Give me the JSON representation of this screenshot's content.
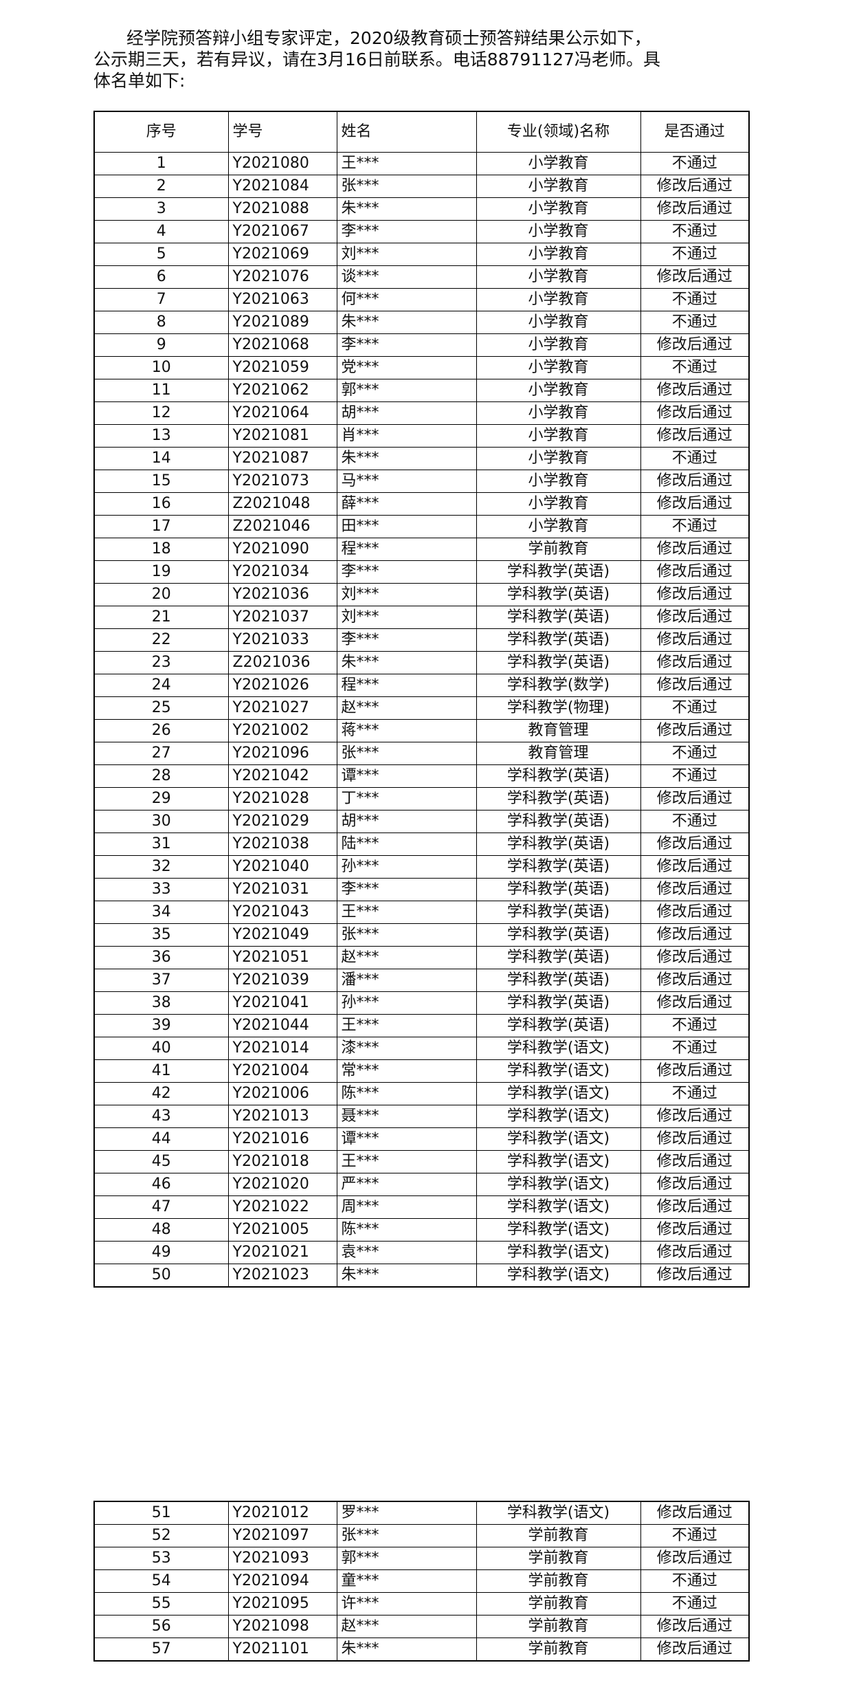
{
  "intro": {
    "lines": [
      "经学院预答辩小组专家评定，2020级教育硕士预答辩结果公示如下，",
      "公示期三天，若有异议，请在3月16日前联系。电话88791127冯老师。具",
      "体名单如下:"
    ]
  },
  "table": {
    "header": [
      "序号",
      "学号",
      "姓名",
      "专业(领域)名称",
      "是否通过"
    ],
    "rows": [
      [
        1,
        "Y2021080",
        "王***",
        "小学教育",
        "不通过"
      ],
      [
        2,
        "Y2021084",
        "张***",
        "小学教育",
        "修改后通过"
      ],
      [
        3,
        "Y2021088",
        "朱***",
        "小学教育",
        "修改后通过"
      ],
      [
        4,
        "Y2021067",
        "李***",
        "小学教育",
        "不通过"
      ],
      [
        5,
        "Y2021069",
        "刘***",
        "小学教育",
        "不通过"
      ],
      [
        6,
        "Y2021076",
        "谈***",
        "小学教育",
        "修改后通过"
      ],
      [
        7,
        "Y2021063",
        "何***",
        "小学教育",
        "不通过"
      ],
      [
        8,
        "Y2021089",
        "朱***",
        "小学教育",
        "不通过"
      ],
      [
        9,
        "Y2021068",
        "李***",
        "小学教育",
        "修改后通过"
      ],
      [
        10,
        "Y2021059",
        "党***",
        "小学教育",
        "不通过"
      ],
      [
        11,
        "Y2021062",
        "郭***",
        "小学教育",
        "修改后通过"
      ],
      [
        12,
        "Y2021064",
        "胡***",
        "小学教育",
        "修改后通过"
      ],
      [
        13,
        "Y2021081",
        "肖***",
        "小学教育",
        "修改后通过"
      ],
      [
        14,
        "Y2021087",
        "朱***",
        "小学教育",
        "不通过"
      ],
      [
        15,
        "Y2021073",
        "马***",
        "小学教育",
        "修改后通过"
      ],
      [
        16,
        "Z2021048",
        "薛***",
        "小学教育",
        "修改后通过"
      ],
      [
        17,
        "Z2021046",
        "田***",
        "小学教育",
        "不通过"
      ],
      [
        18,
        "Y2021090",
        "程***",
        "学前教育",
        "修改后通过"
      ],
      [
        19,
        "Y2021034",
        "李***",
        "学科教学(英语)",
        "修改后通过"
      ],
      [
        20,
        "Y2021036",
        "刘***",
        "学科教学(英语)",
        "修改后通过"
      ],
      [
        21,
        "Y2021037",
        "刘***",
        "学科教学(英语)",
        "修改后通过"
      ],
      [
        22,
        "Y2021033",
        "李***",
        "学科教学(英语)",
        "修改后通过"
      ],
      [
        23,
        "Z2021036",
        "朱***",
        "学科教学(英语)",
        "修改后通过"
      ],
      [
        24,
        "Y2021026",
        "程***",
        "学科教学(数学)",
        "修改后通过"
      ],
      [
        25,
        "Y2021027",
        "赵***",
        "学科教学(物理)",
        "不通过"
      ],
      [
        26,
        "Y2021002",
        "蒋***",
        "教育管理",
        "修改后通过"
      ],
      [
        27,
        "Y2021096",
        "张***",
        "教育管理",
        "不通过"
      ],
      [
        28,
        "Y2021042",
        "谭***",
        "学科教学(英语)",
        "不通过"
      ],
      [
        29,
        "Y2021028",
        "丁***",
        "学科教学(英语)",
        "修改后通过"
      ],
      [
        30,
        "Y2021029",
        "胡***",
        "学科教学(英语)",
        "不通过"
      ],
      [
        31,
        "Y2021038",
        "陆***",
        "学科教学(英语)",
        "修改后通过"
      ],
      [
        32,
        "Y2021040",
        "孙***",
        "学科教学(英语)",
        "修改后通过"
      ],
      [
        33,
        "Y2021031",
        "李***",
        "学科教学(英语)",
        "修改后通过"
      ],
      [
        34,
        "Y2021043",
        "王***",
        "学科教学(英语)",
        "修改后通过"
      ],
      [
        35,
        "Y2021049",
        "张***",
        "学科教学(英语)",
        "修改后通过"
      ],
      [
        36,
        "Y2021051",
        "赵***",
        "学科教学(英语)",
        "修改后通过"
      ],
      [
        37,
        "Y2021039",
        "潘***",
        "学科教学(英语)",
        "修改后通过"
      ],
      [
        38,
        "Y2021041",
        "孙***",
        "学科教学(英语)",
        "修改后通过"
      ],
      [
        39,
        "Y2021044",
        "王***",
        "学科教学(英语)",
        "不通过"
      ],
      [
        40,
        "Y2021014",
        "漆***",
        "学科教学(语文)",
        "不通过"
      ],
      [
        41,
        "Y2021004",
        "常***",
        "学科教学(语文)",
        "修改后通过"
      ],
      [
        42,
        "Y2021006",
        "陈***",
        "学科教学(语文)",
        "不通过"
      ],
      [
        43,
        "Y2021013",
        "聂***",
        "学科教学(语文)",
        "修改后通过"
      ],
      [
        44,
        "Y2021016",
        "谭***",
        "学科教学(语文)",
        "修改后通过"
      ],
      [
        45,
        "Y2021018",
        "王***",
        "学科教学(语文)",
        "修改后通过"
      ],
      [
        46,
        "Y2021020",
        "严***",
        "学科教学(语文)",
        "修改后通过"
      ],
      [
        47,
        "Y2021022",
        "周***",
        "学科教学(语文)",
        "修改后通过"
      ],
      [
        48,
        "Y2021005",
        "陈***",
        "学科教学(语文)",
        "修改后通过"
      ],
      [
        49,
        "Y2021021",
        "袁***",
        "学科教学(语文)",
        "修改后通过"
      ],
      [
        50,
        "Y2021023",
        "朱***",
        "学科教学(语文)",
        "修改后通过"
      ]
    ]
  },
  "table_continued": {
    "rows": [
      [
        51,
        "Y2021012",
        "罗***",
        "学科教学(语文)",
        "修改后通过"
      ],
      [
        52,
        "Y2021097",
        "张***",
        "学前教育",
        "不通过"
      ],
      [
        53,
        "Y2021093",
        "郭***",
        "学前教育",
        "修改后通过"
      ],
      [
        54,
        "Y2021094",
        "童***",
        "学前教育",
        "不通过"
      ],
      [
        55,
        "Y2021095",
        "许***",
        "学前教育",
        "不通过"
      ],
      [
        56,
        "Y2021098",
        "赵***",
        "学前教育",
        "修改后通过"
      ],
      [
        57,
        "Y2021101",
        "朱***",
        "学前教育",
        "修改后通过"
      ]
    ]
  }
}
